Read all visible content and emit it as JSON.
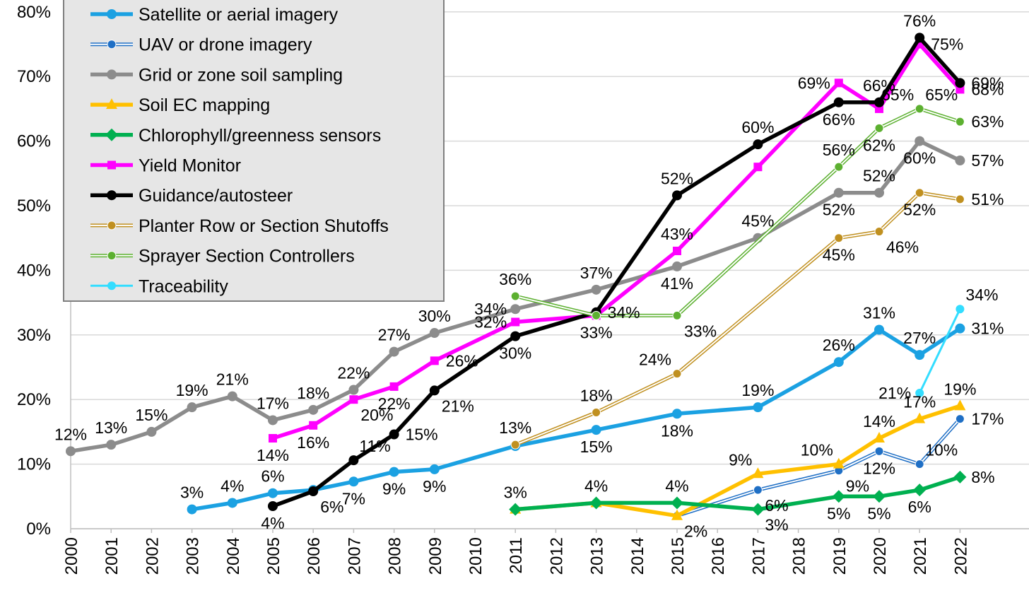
{
  "chart_data": {
    "type": "line",
    "title": "",
    "xlabel": "",
    "ylabel": "",
    "ylim": [
      0,
      80
    ],
    "yticks": [
      "0%",
      "10%",
      "20%",
      "30%",
      "40%",
      "50%",
      "60%",
      "70%",
      "80%"
    ],
    "categories": [
      "2000",
      "2001",
      "2002",
      "2003",
      "2004",
      "2005",
      "2006",
      "2007",
      "2008",
      "2009",
      "2010",
      "2011",
      "2012",
      "2013",
      "2014",
      "2015",
      "2016",
      "2017",
      "2018",
      "2019",
      "2020",
      "2021",
      "2022"
    ],
    "grid": "horizontal",
    "legend_position": "top-left",
    "series": [
      {
        "name": "Satellite or aerial imagery",
        "color": "#1ba1e2",
        "style": "solid-thick",
        "marker": "circle",
        "points": [
          {
            "x": "2003",
            "y": 3
          },
          {
            "x": "2004",
            "y": 4
          },
          {
            "x": "2005",
            "y": 5.5
          },
          {
            "x": "2006",
            "y": 6
          },
          {
            "x": "2007",
            "y": 7.3
          },
          {
            "x": "2008",
            "y": 8.8
          },
          {
            "x": "2009",
            "y": 9.2
          },
          {
            "x": "2011",
            "y": 12.8
          },
          {
            "x": "2013",
            "y": 15.3
          },
          {
            "x": "2015",
            "y": 17.8
          },
          {
            "x": "2017",
            "y": 18.8
          },
          {
            "x": "2019",
            "y": 25.8
          },
          {
            "x": "2020",
            "y": 30.8
          },
          {
            "x": "2021",
            "y": 26.9
          },
          {
            "x": "2022",
            "y": 31
          }
        ],
        "labels": [
          {
            "x": "2003",
            "text": "3%",
            "pos": "above"
          },
          {
            "x": "2004",
            "text": "4%",
            "pos": "above"
          },
          {
            "x": "2005",
            "text": "6%",
            "pos": "above"
          },
          {
            "x": "2007",
            "text": "7%",
            "pos": "below"
          },
          {
            "x": "2008",
            "text": "9%",
            "pos": "below"
          },
          {
            "x": "2009",
            "text": "9%",
            "pos": "below"
          },
          {
            "x": "2013",
            "text": "15%",
            "pos": "below"
          },
          {
            "x": "2015",
            "text": "18%",
            "pos": "below"
          },
          {
            "x": "2017",
            "text": "19%",
            "pos": "above"
          },
          {
            "x": "2019",
            "text": "26%",
            "pos": "above"
          },
          {
            "x": "2020",
            "text": "31%",
            "pos": "above"
          },
          {
            "x": "2021",
            "text": "27%",
            "pos": "above"
          },
          {
            "x": "2022",
            "text": "31%",
            "pos": "right"
          }
        ]
      },
      {
        "name": "UAV or drone imagery",
        "color": "#1f6fc5",
        "style": "double",
        "marker": "circle",
        "points": [
          {
            "x": "2015",
            "y": 2
          },
          {
            "x": "2017",
            "y": 6
          },
          {
            "x": "2019",
            "y": 9
          },
          {
            "x": "2020",
            "y": 12
          },
          {
            "x": "2021",
            "y": 10
          },
          {
            "x": "2022",
            "y": 17
          }
        ],
        "labels": [
          {
            "x": "2017",
            "text": "6%",
            "pos": "below-right"
          },
          {
            "x": "2019",
            "text": "9%",
            "pos": "below-right"
          },
          {
            "x": "2020",
            "text": "12%",
            "pos": "below"
          },
          {
            "x": "2021",
            "text": "10%",
            "pos": "above-right"
          },
          {
            "x": "2022",
            "text": "17%",
            "pos": "right"
          }
        ]
      },
      {
        "name": "Grid or zone soil sampling",
        "color": "#8c8c8c",
        "style": "solid-thick",
        "marker": "circle",
        "points": [
          {
            "x": "2000",
            "y": 12
          },
          {
            "x": "2001",
            "y": 13
          },
          {
            "x": "2002",
            "y": 15
          },
          {
            "x": "2003",
            "y": 18.8
          },
          {
            "x": "2004",
            "y": 20.5
          },
          {
            "x": "2005",
            "y": 16.8
          },
          {
            "x": "2006",
            "y": 18.4
          },
          {
            "x": "2007",
            "y": 21.5
          },
          {
            "x": "2008",
            "y": 27.4
          },
          {
            "x": "2009",
            "y": 30.3
          },
          {
            "x": "2011",
            "y": 34
          },
          {
            "x": "2013",
            "y": 37
          },
          {
            "x": "2015",
            "y": 40.6
          },
          {
            "x": "2017",
            "y": 45
          },
          {
            "x": "2019",
            "y": 52
          },
          {
            "x": "2020",
            "y": 52
          },
          {
            "x": "2021",
            "y": 60
          },
          {
            "x": "2022",
            "y": 57
          }
        ],
        "labels": [
          {
            "x": "2000",
            "text": "12%",
            "pos": "above"
          },
          {
            "x": "2001",
            "text": "13%",
            "pos": "above"
          },
          {
            "x": "2002",
            "text": "15%",
            "pos": "above"
          },
          {
            "x": "2003",
            "text": "19%",
            "pos": "above"
          },
          {
            "x": "2004",
            "text": "21%",
            "pos": "above"
          },
          {
            "x": "2005",
            "text": "17%",
            "pos": "above"
          },
          {
            "x": "2006",
            "text": "18%",
            "pos": "above"
          },
          {
            "x": "2007",
            "text": "22%",
            "pos": "above"
          },
          {
            "x": "2008",
            "text": "27%",
            "pos": "above"
          },
          {
            "x": "2009",
            "text": "30%",
            "pos": "above"
          },
          {
            "x": "2011",
            "text": "34%",
            "pos": "left"
          },
          {
            "x": "2013",
            "text": "37%",
            "pos": "above"
          },
          {
            "x": "2015",
            "text": "41%",
            "pos": "below"
          },
          {
            "x": "2017",
            "text": "45%",
            "pos": "above"
          },
          {
            "x": "2019",
            "text": "52%",
            "pos": "below"
          },
          {
            "x": "2020",
            "text": "52%",
            "pos": "above"
          },
          {
            "x": "2021",
            "text": "60%",
            "pos": "below"
          },
          {
            "x": "2022",
            "text": "57%",
            "pos": "right"
          }
        ]
      },
      {
        "name": "Soil EC mapping",
        "color": "#ffc000",
        "style": "solid-thick",
        "marker": "triangle",
        "points": [
          {
            "x": "2011",
            "y": 3
          },
          {
            "x": "2013",
            "y": 4
          },
          {
            "x": "2015",
            "y": 2
          },
          {
            "x": "2017",
            "y": 8.5
          },
          {
            "x": "2019",
            "y": 10
          },
          {
            "x": "2020",
            "y": 14
          },
          {
            "x": "2021",
            "y": 17
          },
          {
            "x": "2022",
            "y": 19
          }
        ],
        "labels": [
          {
            "x": "2015",
            "text": "2%",
            "pos": "below-right"
          },
          {
            "x": "2017",
            "text": "9%",
            "pos": "above-left"
          },
          {
            "x": "2019",
            "text": "10%",
            "pos": "above-left"
          },
          {
            "x": "2020",
            "text": "14%",
            "pos": "above"
          },
          {
            "x": "2021",
            "text": "17%",
            "pos": "above"
          },
          {
            "x": "2022",
            "text": "19%",
            "pos": "above"
          }
        ]
      },
      {
        "name": "Chlorophyll/greenness sensors",
        "color": "#00b050",
        "style": "solid-thick",
        "marker": "diamond",
        "points": [
          {
            "x": "2011",
            "y": 3
          },
          {
            "x": "2013",
            "y": 4
          },
          {
            "x": "2015",
            "y": 4
          },
          {
            "x": "2017",
            "y": 3
          },
          {
            "x": "2019",
            "y": 5
          },
          {
            "x": "2020",
            "y": 5
          },
          {
            "x": "2021",
            "y": 6
          },
          {
            "x": "2022",
            "y": 8
          }
        ],
        "labels": [
          {
            "x": "2011",
            "text": "3%",
            "pos": "above"
          },
          {
            "x": "2013",
            "text": "4%",
            "pos": "above"
          },
          {
            "x": "2015",
            "text": "4%",
            "pos": "above"
          },
          {
            "x": "2017",
            "text": "3%",
            "pos": "below-right"
          },
          {
            "x": "2019",
            "text": "5%",
            "pos": "below"
          },
          {
            "x": "2020",
            "text": "5%",
            "pos": "below"
          },
          {
            "x": "2021",
            "text": "6%",
            "pos": "below"
          },
          {
            "x": "2022",
            "text": "8%",
            "pos": "right"
          }
        ]
      },
      {
        "name": "Yield Monitor",
        "color": "#ff00ff",
        "style": "solid-thick",
        "marker": "square",
        "points": [
          {
            "x": "2005",
            "y": 14
          },
          {
            "x": "2006",
            "y": 16
          },
          {
            "x": "2007",
            "y": 20
          },
          {
            "x": "2008",
            "y": 22
          },
          {
            "x": "2009",
            "y": 26
          },
          {
            "x": "2011",
            "y": 32
          },
          {
            "x": "2013",
            "y": 33
          },
          {
            "x": "2015",
            "y": 43
          },
          {
            "x": "2017",
            "y": 56
          },
          {
            "x": "2019",
            "y": 69
          },
          {
            "x": "2020",
            "y": 65
          },
          {
            "x": "2021",
            "y": 75
          },
          {
            "x": "2022",
            "y": 68
          }
        ],
        "labels": [
          {
            "x": "2005",
            "text": "14%",
            "pos": "below"
          },
          {
            "x": "2006",
            "text": "16%",
            "pos": "below"
          },
          {
            "x": "2007",
            "text": "20%",
            "pos": "below-right"
          },
          {
            "x": "2008",
            "text": "22%",
            "pos": "below"
          },
          {
            "x": "2009",
            "text": "26%",
            "pos": "right"
          },
          {
            "x": "2011",
            "text": "32%",
            "pos": "left"
          },
          {
            "x": "2013",
            "text": "33%",
            "pos": "below"
          },
          {
            "x": "2015",
            "text": "43%",
            "pos": "above"
          },
          {
            "x": "2019",
            "text": "69%",
            "pos": "left"
          },
          {
            "x": "2021",
            "text": "75%",
            "pos": "right"
          },
          {
            "x": "2022",
            "text": "68%",
            "pos": "right"
          }
        ]
      },
      {
        "name": "Guidance/autosteer",
        "color": "#000000",
        "style": "solid-thick",
        "marker": "circle",
        "points": [
          {
            "x": "2005",
            "y": 3.5
          },
          {
            "x": "2006",
            "y": 5.8
          },
          {
            "x": "2007",
            "y": 10.6
          },
          {
            "x": "2008",
            "y": 14.6
          },
          {
            "x": "2009",
            "y": 21.4
          },
          {
            "x": "2011",
            "y": 29.8
          },
          {
            "x": "2013",
            "y": 33.5
          },
          {
            "x": "2015",
            "y": 51.6
          },
          {
            "x": "2017",
            "y": 59.5
          },
          {
            "x": "2019",
            "y": 66
          },
          {
            "x": "2020",
            "y": 66
          },
          {
            "x": "2021",
            "y": 76
          },
          {
            "x": "2022",
            "y": 69
          }
        ],
        "labels": [
          {
            "x": "2005",
            "text": "4%",
            "pos": "below"
          },
          {
            "x": "2006",
            "text": "6%",
            "pos": "below-right"
          },
          {
            "x": "2007",
            "text": "11%",
            "pos": "above-right"
          },
          {
            "x": "2008",
            "text": "15%",
            "pos": "right"
          },
          {
            "x": "2009",
            "text": "21%",
            "pos": "below-right"
          },
          {
            "x": "2011",
            "text": "30%",
            "pos": "below"
          },
          {
            "x": "2013",
            "text": "34%",
            "pos": "right"
          },
          {
            "x": "2015",
            "text": "52%",
            "pos": "above"
          },
          {
            "x": "2017",
            "text": "60%",
            "pos": "above"
          },
          {
            "x": "2019",
            "text": "66%",
            "pos": "below"
          },
          {
            "x": "2020",
            "text": "66%",
            "pos": "above"
          },
          {
            "x": "2021",
            "text": "76%",
            "pos": "above"
          },
          {
            "x": "2022",
            "text": "69%",
            "pos": "right"
          }
        ]
      },
      {
        "name": "Planter Row or Section Shutoffs",
        "color": "#c09020",
        "style": "double",
        "marker": "circle",
        "points": [
          {
            "x": "2011",
            "y": 13
          },
          {
            "x": "2013",
            "y": 18
          },
          {
            "x": "2015",
            "y": 24
          },
          {
            "x": "2019",
            "y": 45
          },
          {
            "x": "2020",
            "y": 46
          },
          {
            "x": "2021",
            "y": 52
          },
          {
            "x": "2022",
            "y": 51
          }
        ],
        "labels": [
          {
            "x": "2011",
            "text": "13%",
            "pos": "above"
          },
          {
            "x": "2013",
            "text": "18%",
            "pos": "above"
          },
          {
            "x": "2015",
            "text": "24%",
            "pos": "above-left"
          },
          {
            "x": "2019",
            "text": "45%",
            "pos": "below"
          },
          {
            "x": "2020",
            "text": "46%",
            "pos": "below-right"
          },
          {
            "x": "2021",
            "text": "52%",
            "pos": "below"
          },
          {
            "x": "2022",
            "text": "51%",
            "pos": "right"
          }
        ]
      },
      {
        "name": "Sprayer Section Controllers",
        "color": "#5cb030",
        "style": "double",
        "marker": "circle",
        "points": [
          {
            "x": "2011",
            "y": 36
          },
          {
            "x": "2013",
            "y": 33
          },
          {
            "x": "2015",
            "y": 33
          },
          {
            "x": "2019",
            "y": 56
          },
          {
            "x": "2020",
            "y": 62
          },
          {
            "x": "2021",
            "y": 65
          },
          {
            "x": "2022",
            "y": 63
          }
        ],
        "labels": [
          {
            "x": "2011",
            "text": "36%",
            "pos": "above"
          },
          {
            "x": "2015",
            "text": "33%",
            "pos": "below-right"
          },
          {
            "x": "2019",
            "text": "56%",
            "pos": "above"
          },
          {
            "x": "2020",
            "text": "62%",
            "pos": "below"
          },
          {
            "x": "2021",
            "text": "65%",
            "pos": "above-left"
          },
          {
            "x": "2021",
            "text": "65%",
            "pos": "above-right"
          },
          {
            "x": "2022",
            "text": "63%",
            "pos": "right"
          }
        ]
      },
      {
        "name": "Traceability",
        "color": "#33ddff",
        "style": "solid-thin",
        "marker": "circle",
        "points": [
          {
            "x": "2021",
            "y": 21
          },
          {
            "x": "2022",
            "y": 34
          }
        ],
        "labels": [
          {
            "x": "2021",
            "text": "21%",
            "pos": "left"
          },
          {
            "x": "2022",
            "text": "34%",
            "pos": "above-right"
          }
        ]
      }
    ]
  }
}
